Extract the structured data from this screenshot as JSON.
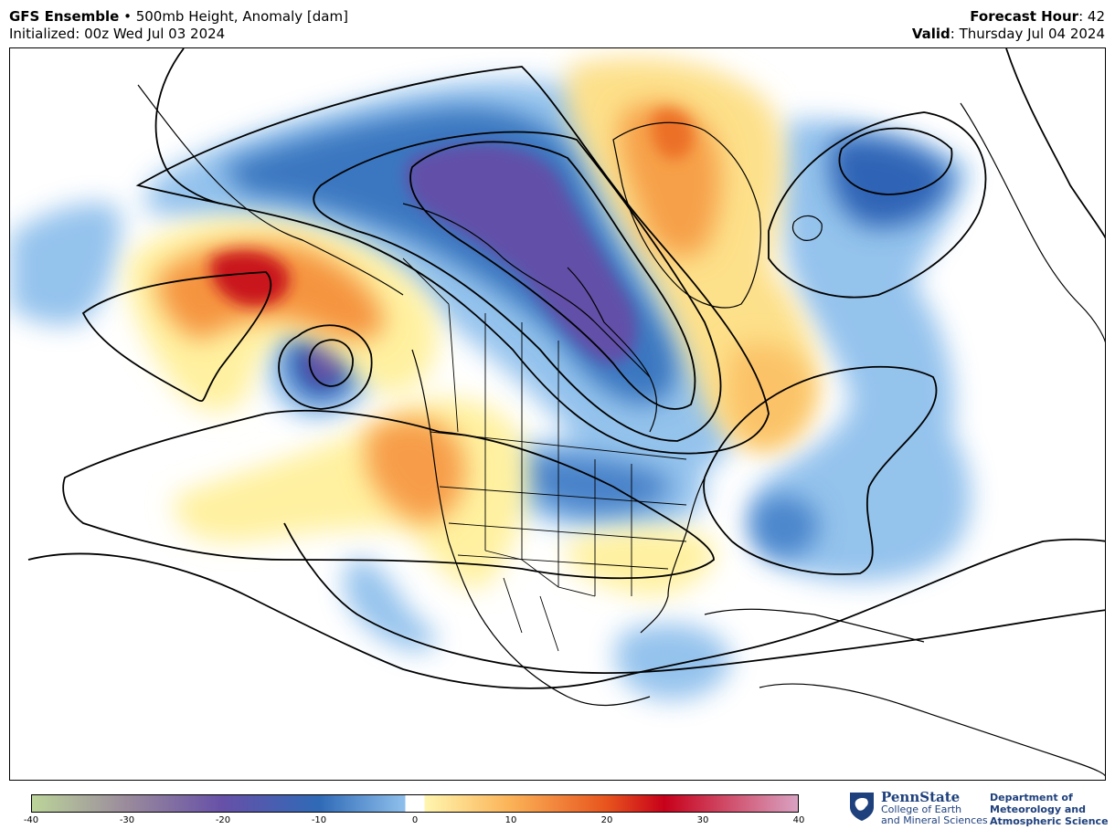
{
  "header": {
    "model": "GFS Ensemble",
    "separator": " • ",
    "field": "500mb Height, Anomaly [dam]",
    "initialized": "Initialized: 00z Wed Jul 03 2024",
    "forecast_hour_label": "Forecast Hour",
    "forecast_hour_value": ": 42",
    "valid_label": "Valid",
    "valid_value": ": Thursday Jul 04 2024"
  },
  "map": {
    "region": "North America",
    "features": [
      "height-anomaly-fill",
      "height-contours",
      "coastlines",
      "country-borders",
      "state-borders"
    ],
    "anomaly_centers": [
      {
        "name": "arctic-canada-trough",
        "sign": "negative",
        "approx_dam": -20
      },
      {
        "name": "gulf-of-alaska-ridge",
        "sign": "positive",
        "approx_dam": 25
      },
      {
        "name": "northeast-pacific-low",
        "sign": "negative",
        "approx_dam": -20
      },
      {
        "name": "greenland-ridge",
        "sign": "positive",
        "approx_dam": 15
      },
      {
        "name": "pacific-northwest-ridge",
        "sign": "positive",
        "approx_dam": 15
      },
      {
        "name": "scandinavia-trough",
        "sign": "negative",
        "approx_dam": -15
      },
      {
        "name": "western-atlantic-low",
        "sign": "negative",
        "approx_dam": -10
      }
    ]
  },
  "colorbar": {
    "min": -40,
    "max": 40,
    "ticks": [
      "-40",
      "-30",
      "-20",
      "-10",
      "0",
      "10",
      "20",
      "30",
      "40"
    ],
    "colors": {
      "minus40": "#bcd59a",
      "minus30": "#9a8a9c",
      "minus20": "#6650a8",
      "minus10": "#2f6ab7",
      "minus2": "#8fc0ec",
      "zero": "#ffffff",
      "plus2": "#fff6b0",
      "plus10": "#fbb257",
      "plus20": "#e8541d",
      "plus26": "#c8001a",
      "plus40": "#d9a2c2"
    }
  },
  "logo": {
    "name": "PennState",
    "line1": "College of Earth",
    "line2": "and Mineral Sciences",
    "dept1": "Department of",
    "dept2": "Meteorology and",
    "dept3": "Atmospheric Science",
    "brand_color": "#1e407c"
  }
}
